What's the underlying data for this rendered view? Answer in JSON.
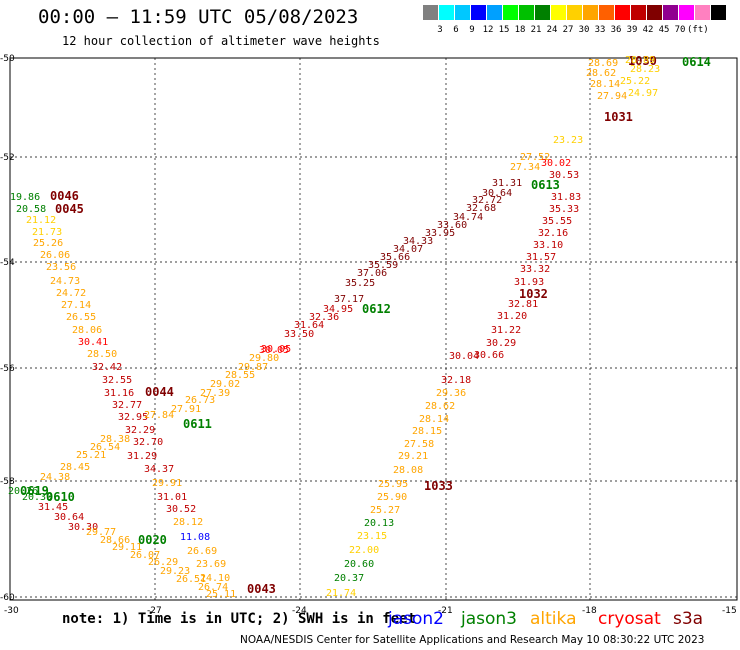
{
  "header": {
    "title": "00:00 – 11:59 UTC 05/08/2023",
    "subtitle": "12 hour collection of altimeter wave heights"
  },
  "legend": {
    "colors": [
      "#808080",
      "#00ffff",
      "#00c8ff",
      "#0000ff",
      "#00a0ff",
      "#00ff00",
      "#00c000",
      "#008000",
      "#ffff00",
      "#ffd000",
      "#ffa500",
      "#ff6000",
      "#ff0000",
      "#c00000",
      "#800000",
      "#900090",
      "#ff00ff",
      "#ff80c0",
      "#000000"
    ],
    "labels": [
      "3",
      "6",
      "9",
      "12",
      "15",
      "18",
      "21",
      "24",
      "27",
      "30",
      "33",
      "36",
      "39",
      "42",
      "45",
      "70",
      "(ft)"
    ]
  },
  "map": {
    "lat_labels": [
      "-50",
      "-52",
      "-54",
      "-56",
      "-58",
      "-60"
    ],
    "lon_labels": [
      "-30",
      "-27",
      "-24",
      "-21",
      "-18",
      "-15"
    ],
    "passes": [
      {
        "id": "0046",
        "color": "#800000"
      },
      {
        "id": "0045",
        "color": "#800000"
      },
      {
        "id": "0044",
        "color": "#800000"
      },
      {
        "id": "0043",
        "color": "#800000"
      },
      {
        "id": "0611",
        "color": "#008000"
      },
      {
        "id": "0610",
        "color": "#008000"
      },
      {
        "id": "0619",
        "color": "#008000"
      },
      {
        "id": "0612",
        "color": "#008000"
      },
      {
        "id": "0613",
        "color": "#008000"
      },
      {
        "id": "0614",
        "color": "#008000"
      },
      {
        "id": "0020",
        "color": "#008000"
      },
      {
        "id": "1030",
        "color": "#800000"
      },
      {
        "id": "1031",
        "color": "#800000"
      },
      {
        "id": "1032",
        "color": "#800000"
      },
      {
        "id": "1033",
        "color": "#800000"
      }
    ],
    "swh_values": [
      {
        "v": "19.86",
        "c": "#008000"
      },
      {
        "v": "20.58",
        "c": "#008000"
      },
      {
        "v": "21.12",
        "c": "#ffd000"
      },
      {
        "v": "21.73",
        "c": "#ffd000"
      },
      {
        "v": "25.26",
        "c": "#ffa500"
      },
      {
        "v": "26.06",
        "c": "#ffa500"
      },
      {
        "v": "23.56",
        "c": "#ffa500"
      },
      {
        "v": "24.73",
        "c": "#ffa500"
      },
      {
        "v": "24.72",
        "c": "#ffa500"
      },
      {
        "v": "27.14",
        "c": "#ffa500"
      },
      {
        "v": "26.55",
        "c": "#ffa500"
      },
      {
        "v": "28.06",
        "c": "#ffa500"
      },
      {
        "v": "30.41",
        "c": "#ff0000"
      },
      {
        "v": "28.50",
        "c": "#ffa500"
      },
      {
        "v": "32.42",
        "c": "#c00000"
      },
      {
        "v": "32.55",
        "c": "#c00000"
      },
      {
        "v": "31.16",
        "c": "#c00000"
      },
      {
        "v": "32.77",
        "c": "#c00000"
      },
      {
        "v": "32.95",
        "c": "#c00000"
      },
      {
        "v": "32.29",
        "c": "#c00000"
      },
      {
        "v": "32.70",
        "c": "#c00000"
      },
      {
        "v": "31.29",
        "c": "#c00000"
      },
      {
        "v": "34.37",
        "c": "#c00000"
      },
      {
        "v": "31.01",
        "c": "#c00000"
      },
      {
        "v": "30.52",
        "c": "#c00000"
      },
      {
        "v": "28.12",
        "c": "#ffa500"
      },
      {
        "v": "26.69",
        "c": "#ffa500"
      },
      {
        "v": "23.69",
        "c": "#ffa500"
      },
      {
        "v": "24.10",
        "c": "#ffa500"
      },
      {
        "v": "11.08",
        "c": "#0000ff"
      },
      {
        "v": "29.91",
        "c": "#ffa500"
      },
      {
        "v": "27.84",
        "c": "#ffa500"
      },
      {
        "v": "27.91",
        "c": "#ffa500"
      },
      {
        "v": "26.73",
        "c": "#ffa500"
      },
      {
        "v": "27.39",
        "c": "#ffa500"
      },
      {
        "v": "29.02",
        "c": "#ffa500"
      },
      {
        "v": "28.55",
        "c": "#ffa500"
      },
      {
        "v": "29.87",
        "c": "#ffa500"
      },
      {
        "v": "29.80",
        "c": "#ffa500"
      },
      {
        "v": "30.05",
        "c": "#ff0000"
      },
      {
        "v": "30.05",
        "c": "#ff0000"
      },
      {
        "v": "33.50",
        "c": "#c00000"
      },
      {
        "v": "31.64",
        "c": "#c00000"
      },
      {
        "v": "32.36",
        "c": "#c00000"
      },
      {
        "v": "34.95",
        "c": "#c00000"
      },
      {
        "v": "37.17",
        "c": "#800000"
      },
      {
        "v": "35.25",
        "c": "#800000"
      },
      {
        "v": "37.06",
        "c": "#800000"
      },
      {
        "v": "35.59",
        "c": "#800000"
      },
      {
        "v": "35.66",
        "c": "#800000"
      },
      {
        "v": "34.07",
        "c": "#800000"
      },
      {
        "v": "34.33",
        "c": "#800000"
      },
      {
        "v": "33.95",
        "c": "#800000"
      },
      {
        "v": "33.60",
        "c": "#800000"
      },
      {
        "v": "34.74",
        "c": "#800000"
      },
      {
        "v": "32.68",
        "c": "#800000"
      },
      {
        "v": "32.72",
        "c": "#800000"
      },
      {
        "v": "30.64",
        "c": "#800000"
      },
      {
        "v": "31.31",
        "c": "#800000"
      },
      {
        "v": "27.34",
        "c": "#ffa500"
      },
      {
        "v": "27.52",
        "c": "#ffa500"
      },
      {
        "v": "28.62",
        "c": "#ffa500"
      },
      {
        "v": "28.14",
        "c": "#ffa500"
      },
      {
        "v": "27.94",
        "c": "#ffa500"
      },
      {
        "v": "28.69",
        "c": "#ffa500"
      },
      {
        "v": "28.89",
        "c": "#ffd000"
      },
      {
        "v": "28.23",
        "c": "#ffd000"
      },
      {
        "v": "25.22",
        "c": "#ffd000"
      },
      {
        "v": "24.97",
        "c": "#ffd000"
      },
      {
        "v": "23.23",
        "c": "#ffd000"
      },
      {
        "v": "30.02",
        "c": "#ff0000"
      },
      {
        "v": "30.53",
        "c": "#c00000"
      },
      {
        "v": "31.83",
        "c": "#c00000"
      },
      {
        "v": "35.33",
        "c": "#c00000"
      },
      {
        "v": "35.55",
        "c": "#c00000"
      },
      {
        "v": "32.16",
        "c": "#c00000"
      },
      {
        "v": "33.10",
        "c": "#c00000"
      },
      {
        "v": "31.57",
        "c": "#c00000"
      },
      {
        "v": "33.32",
        "c": "#c00000"
      },
      {
        "v": "31.93",
        "c": "#c00000"
      },
      {
        "v": "32.81",
        "c": "#c00000"
      },
      {
        "v": "31.20",
        "c": "#c00000"
      },
      {
        "v": "31.22",
        "c": "#c00000"
      },
      {
        "v": "30.29",
        "c": "#c00000"
      },
      {
        "v": "30.66",
        "c": "#c00000"
      },
      {
        "v": "30.04",
        "c": "#c00000"
      },
      {
        "v": "32.18",
        "c": "#c00000"
      },
      {
        "v": "29.36",
        "c": "#ffa500"
      },
      {
        "v": "28.62",
        "c": "#ffa500"
      },
      {
        "v": "28.14",
        "c": "#ffa500"
      },
      {
        "v": "28.15",
        "c": "#ffa500"
      },
      {
        "v": "27.58",
        "c": "#ffa500"
      },
      {
        "v": "29.21",
        "c": "#ffa500"
      },
      {
        "v": "28.08",
        "c": "#ffa500"
      },
      {
        "v": "25.95",
        "c": "#ffa500"
      },
      {
        "v": "25.90",
        "c": "#ffa500"
      },
      {
        "v": "25.27",
        "c": "#ffa500"
      },
      {
        "v": "20.13",
        "c": "#008000"
      },
      {
        "v": "23.15",
        "c": "#ffd000"
      },
      {
        "v": "22.00",
        "c": "#ffd000"
      },
      {
        "v": "20.60",
        "c": "#008000"
      },
      {
        "v": "20.37",
        "c": "#008000"
      },
      {
        "v": "21.74",
        "c": "#ffd000"
      },
      {
        "v": "20.26",
        "c": "#008000"
      },
      {
        "v": "20.39",
        "c": "#008000"
      },
      {
        "v": "31.45",
        "c": "#c00000"
      },
      {
        "v": "30.64",
        "c": "#c00000"
      },
      {
        "v": "30.30",
        "c": "#c00000"
      },
      {
        "v": "29.77",
        "c": "#ffa500"
      },
      {
        "v": "28.66",
        "c": "#ffa500"
      },
      {
        "v": "29.11",
        "c": "#ffa500"
      },
      {
        "v": "26.07",
        "c": "#ffa500"
      },
      {
        "v": "26.29",
        "c": "#ffa500"
      },
      {
        "v": "29.23",
        "c": "#ffa500"
      },
      {
        "v": "26.51",
        "c": "#ffa500"
      },
      {
        "v": "26.74",
        "c": "#ffa500"
      },
      {
        "v": "25.11",
        "c": "#ffa500"
      },
      {
        "v": "24.38",
        "c": "#ffa500"
      },
      {
        "v": "28.45",
        "c": "#ffa500"
      },
      {
        "v": "25.21",
        "c": "#ffa500"
      },
      {
        "v": "26.54",
        "c": "#ffa500"
      },
      {
        "v": "28.38",
        "c": "#ffa500"
      },
      {
        "v": "25.79",
        "c": "#ffa500"
      },
      {
        "v": "26.07",
        "c": "#ffa500"
      }
    ]
  },
  "footer": {
    "note": "note: 1) Time is in UTC; 2) SWH is in feet",
    "satellites": [
      {
        "name": "jason2",
        "color": "#0000ff"
      },
      {
        "name": "jason3",
        "color": "#008000"
      },
      {
        "name": "altika",
        "color": "#ffa500"
      },
      {
        "name": "cryosat",
        "color": "#ff0000"
      },
      {
        "name": "s3a",
        "color": "#800000"
      }
    ],
    "credits": "NOAA/NESDIS Center for Satellite Applications and Research    May 10 08:30:22 UTC 2023"
  }
}
